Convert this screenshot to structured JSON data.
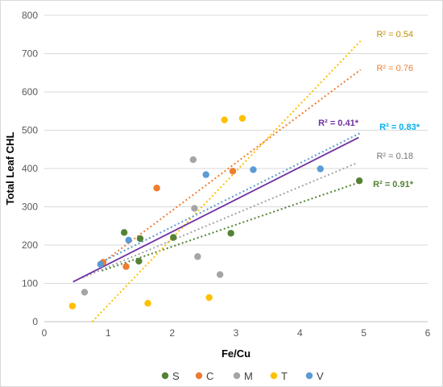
{
  "chart_data": {
    "type": "scatter",
    "xlabel": "Fe/Cu",
    "ylabel": "Total Leaf CHL",
    "xlim": [
      0,
      6
    ],
    "ylim": [
      0,
      800
    ],
    "x_ticks": [
      "0",
      "1",
      "2",
      "3",
      "4",
      "5",
      "6"
    ],
    "y_ticks": [
      "0",
      "100",
      "200",
      "300",
      "400",
      "500",
      "600",
      "700",
      "800"
    ],
    "grid": "horizontal",
    "legend_position": "bottom",
    "series": [
      {
        "name": "S",
        "color": "#548235",
        "points": [
          [
            1.25,
            233
          ],
          [
            1.5,
            217
          ],
          [
            1.48,
            158
          ],
          [
            2.02,
            220
          ],
          [
            2.92,
            231
          ],
          [
            4.93,
            368
          ]
        ],
        "trend": {
          "x": [
            0.9,
            4.95
          ],
          "y": [
            133,
            365
          ],
          "dash": true
        },
        "annotation": "R² = 0.91*",
        "annotation_color": "#548235",
        "annotation_bold": true
      },
      {
        "name": "C",
        "color": "#ed7d31",
        "points": [
          [
            0.92,
            155
          ],
          [
            1.28,
            144
          ],
          [
            1.76,
            349
          ],
          [
            2.95,
            393
          ]
        ],
        "trend": {
          "x": [
            0.9,
            4.95
          ],
          "y": [
            153,
            658
          ],
          "dash": true
        },
        "annotation": "R² = 0.76",
        "annotation_color": "#ed7d31",
        "annotation_bold": false
      },
      {
        "name": "M",
        "color": "#a5a5a5",
        "points": [
          [
            0.63,
            77
          ],
          [
            2.33,
            423
          ],
          [
            2.35,
            296
          ],
          [
            2.4,
            170
          ],
          [
            2.75,
            123
          ]
        ],
        "trend": {
          "x": [
            0.6,
            4.9
          ],
          "y": [
            115,
            415
          ],
          "dash": true
        },
        "annotation": "R² = 0.18",
        "annotation_color": "#767171",
        "annotation_bold": false
      },
      {
        "name": "T",
        "color": "#ffc000",
        "points": [
          [
            0.44,
            41
          ],
          [
            1.62,
            48
          ],
          [
            2.58,
            63
          ],
          [
            2.82,
            527
          ],
          [
            3.1,
            531
          ]
        ],
        "trend": {
          "x": [
            0.75,
            4.95
          ],
          "y": [
            0,
            733
          ],
          "dash": true
        },
        "annotation": "R² = 0.54",
        "annotation_color": "#bf9000",
        "annotation_bold": false
      },
      {
        "name": "V",
        "color": "#5b9bd5",
        "points": [
          [
            0.88,
            150
          ],
          [
            1.32,
            213
          ],
          [
            2.53,
            384
          ],
          [
            3.27,
            397
          ],
          [
            4.32,
            399
          ]
        ],
        "trend": {
          "x": [
            0.85,
            4.95
          ],
          "y": [
            152,
            493
          ],
          "dash": true
        },
        "annotation": "R² = 0.83*",
        "annotation_color": "#00b0f0",
        "annotation_bold": true
      }
    ],
    "overall_trend": {
      "color": "#7030a0",
      "x": [
        0.45,
        4.92
      ],
      "y": [
        104,
        481
      ],
      "annotation": "R² = 0.41*"
    }
  }
}
